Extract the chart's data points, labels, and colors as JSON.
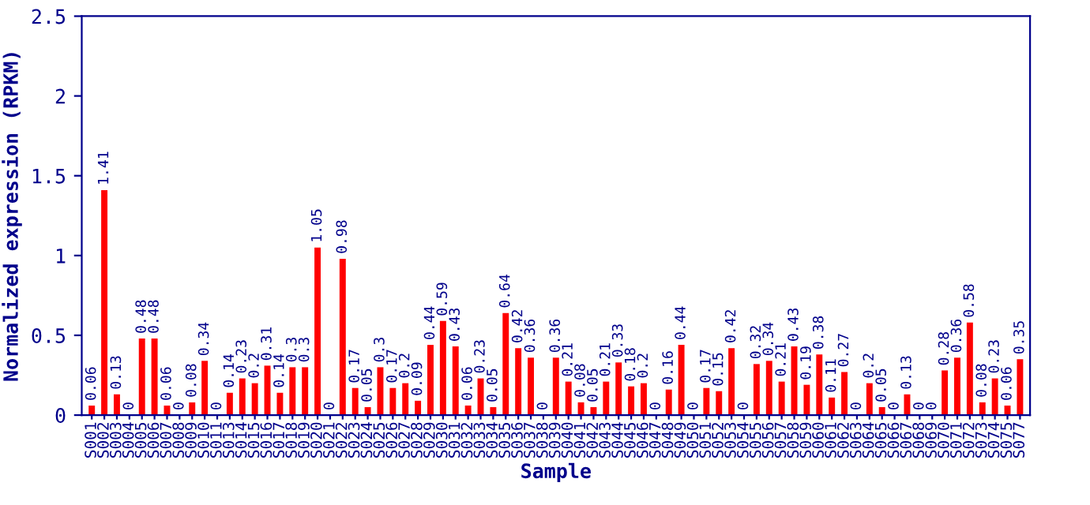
{
  "chart_data": {
    "type": "bar",
    "xlabel": "Sample",
    "ylabel": "Normalized expression (RPKM)",
    "categories": [
      "S001",
      "S002",
      "S003",
      "S004",
      "S005",
      "S006",
      "S007",
      "S008",
      "S009",
      "S010",
      "S011",
      "S013",
      "S014",
      "S015",
      "S016",
      "S017",
      "S018",
      "S019",
      "S020",
      "S021",
      "S022",
      "S023",
      "S024",
      "S025",
      "S026",
      "S027",
      "S028",
      "S029",
      "S030",
      "S031",
      "S032",
      "S033",
      "S034",
      "S035",
      "S036",
      "S037",
      "S038",
      "S039",
      "S040",
      "S041",
      "S042",
      "S043",
      "S044",
      "S045",
      "S046",
      "S047",
      "S048",
      "S049",
      "S050",
      "S051",
      "S052",
      "S053",
      "S054",
      "S055",
      "S056",
      "S057",
      "S058",
      "S059",
      "S060",
      "S061",
      "S062",
      "S063",
      "S064",
      "S065",
      "S066",
      "S067",
      "S068",
      "S069",
      "S070",
      "S071",
      "S072",
      "S073",
      "S074",
      "S075",
      "S077"
    ],
    "values": [
      0.06,
      1.41,
      0.13,
      0,
      0.48,
      0.48,
      0.06,
      0,
      0.08,
      0.34,
      0,
      0.14,
      0.23,
      0.2,
      0.31,
      0.14,
      0.3,
      0.3,
      1.05,
      0,
      0.98,
      0.17,
      0.05,
      0.3,
      0.17,
      0.2,
      0.09,
      0.44,
      0.59,
      0.43,
      0.06,
      0.23,
      0.05,
      0.64,
      0.42,
      0.36,
      0,
      0.36,
      0.21,
      0.08,
      0.05,
      0.21,
      0.33,
      0.18,
      0.2,
      0,
      0.16,
      0.44,
      0,
      0.17,
      0.15,
      0.42,
      0,
      0.32,
      0.34,
      0.21,
      0.43,
      0.19,
      0.38,
      0.11,
      0.27,
      0,
      0.2,
      0.05,
      0,
      0.13,
      0,
      0,
      0.28,
      0.36,
      0.58,
      0.08,
      0.23,
      0.06,
      0.35
    ],
    "color": "#ff0000",
    "ylim": [
      0,
      2.5
    ],
    "yticks": [
      0,
      {
        "value": 0.5,
        "label": "0.5"
      },
      1,
      {
        "value": 1.5,
        "label": "1.5"
      },
      2,
      {
        "value": 2.5,
        "label": "2.5"
      }
    ],
    "data_labels": true,
    "grid": false,
    "legend": false
  }
}
